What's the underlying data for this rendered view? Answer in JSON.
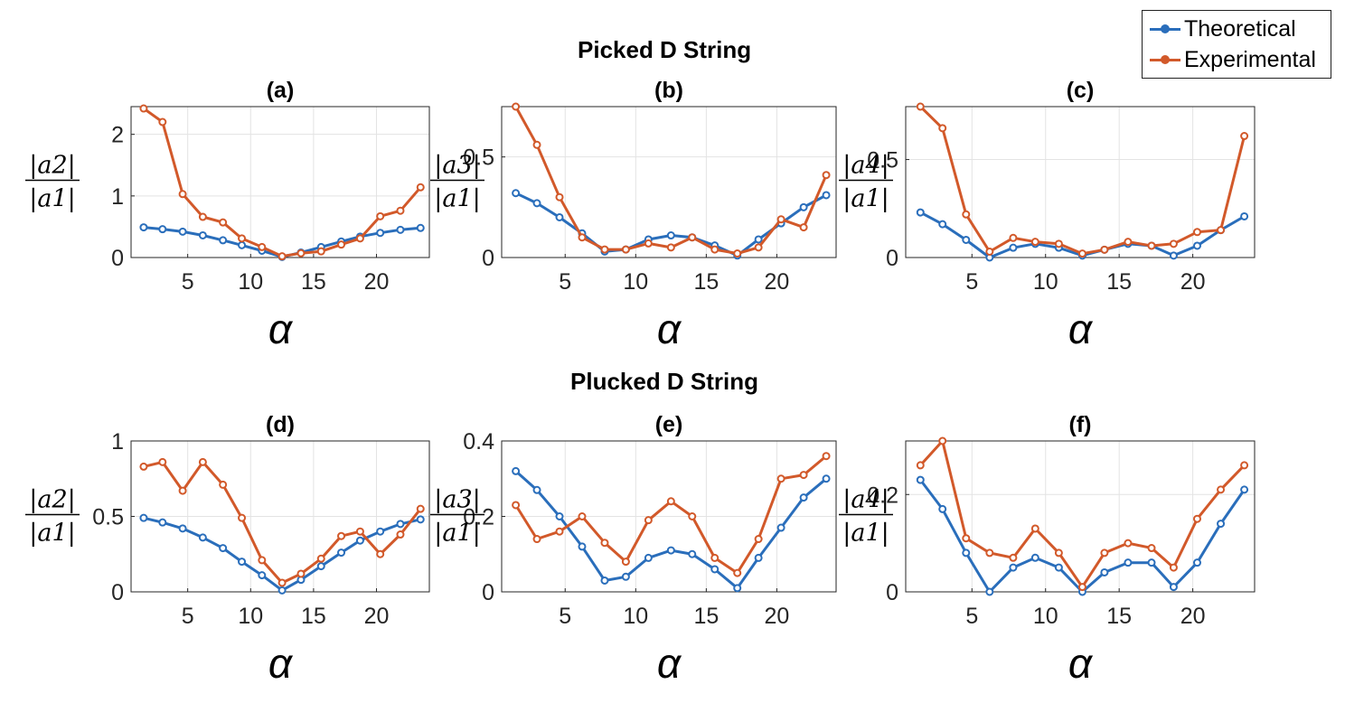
{
  "figure": {
    "row_titles": [
      "Picked D String",
      "Plucked D String"
    ],
    "legend": {
      "entries": [
        {
          "label": "Theoretical",
          "color": "#2a6ebb"
        },
        {
          "label": "Experimental",
          "color": "#d2592a"
        }
      ]
    }
  },
  "chart_data": [
    {
      "panel": "(a)",
      "type": "line",
      "xlabel": "α",
      "ylabel_num": "|a2|",
      "ylabel_den": "|a1|",
      "xlim": [
        0.5,
        24.2
      ],
      "xticks": [
        5,
        10,
        15,
        20
      ],
      "ylim": [
        0,
        2.45
      ],
      "yticks": [
        0,
        1,
        2
      ],
      "yticklabels": [
        "0",
        "1",
        "2"
      ],
      "grid": true,
      "x": [
        1.5,
        3.0,
        4.6,
        6.2,
        7.8,
        9.3,
        10.9,
        12.5,
        14.0,
        15.6,
        17.2,
        18.7,
        20.3,
        21.9,
        23.5
      ],
      "series": [
        {
          "name": "Theoretical",
          "color": "#2a6ebb",
          "values": [
            0.49,
            0.46,
            0.42,
            0.36,
            0.28,
            0.2,
            0.11,
            0.01,
            0.08,
            0.17,
            0.26,
            0.34,
            0.4,
            0.45,
            0.48
          ]
        },
        {
          "name": "Experimental",
          "color": "#d2592a",
          "values": [
            2.42,
            2.2,
            1.03,
            0.66,
            0.57,
            0.31,
            0.17,
            0.02,
            0.07,
            0.1,
            0.21,
            0.31,
            0.67,
            0.76,
            1.14
          ]
        }
      ]
    },
    {
      "panel": "(b)",
      "type": "line",
      "xlabel": "α",
      "ylabel_num": "|a3|",
      "ylabel_den": "|a1|",
      "xlim": [
        0.5,
        24.2
      ],
      "xticks": [
        5,
        10,
        15,
        20
      ],
      "ylim": [
        0,
        0.75
      ],
      "yticks": [
        0,
        0.5
      ],
      "yticklabels": [
        "0",
        "0.5"
      ],
      "grid": true,
      "x": [
        1.5,
        3.0,
        4.6,
        6.2,
        7.8,
        9.3,
        10.9,
        12.5,
        14.0,
        15.6,
        17.2,
        18.7,
        20.3,
        21.9,
        23.5
      ],
      "series": [
        {
          "name": "Theoretical",
          "color": "#2a6ebb",
          "values": [
            0.32,
            0.27,
            0.2,
            0.12,
            0.03,
            0.04,
            0.09,
            0.11,
            0.1,
            0.06,
            0.01,
            0.09,
            0.17,
            0.25,
            0.31
          ]
        },
        {
          "name": "Experimental",
          "color": "#d2592a",
          "values": [
            0.75,
            0.56,
            0.3,
            0.1,
            0.04,
            0.04,
            0.07,
            0.05,
            0.1,
            0.04,
            0.02,
            0.05,
            0.19,
            0.15,
            0.41
          ]
        }
      ]
    },
    {
      "panel": "(c)",
      "type": "line",
      "xlabel": "α",
      "ylabel_num": "|a4|",
      "ylabel_den": "|a1|",
      "xlim": [
        0.5,
        24.2
      ],
      "xticks": [
        5,
        10,
        15,
        20
      ],
      "ylim": [
        0,
        0.77
      ],
      "yticks": [
        0,
        0.5
      ],
      "yticklabels": [
        "0",
        "0.5"
      ],
      "grid": true,
      "x": [
        1.5,
        3.0,
        4.6,
        6.2,
        7.8,
        9.3,
        10.9,
        12.5,
        14.0,
        15.6,
        17.2,
        18.7,
        20.3,
        21.9,
        23.5
      ],
      "series": [
        {
          "name": "Theoretical",
          "color": "#2a6ebb",
          "values": [
            0.23,
            0.17,
            0.09,
            0.0,
            0.05,
            0.07,
            0.05,
            0.01,
            0.04,
            0.07,
            0.06,
            0.01,
            0.06,
            0.14,
            0.21
          ]
        },
        {
          "name": "Experimental",
          "color": "#d2592a",
          "values": [
            0.77,
            0.66,
            0.22,
            0.03,
            0.1,
            0.08,
            0.07,
            0.02,
            0.04,
            0.08,
            0.06,
            0.07,
            0.13,
            0.14,
            0.62
          ]
        }
      ]
    },
    {
      "panel": "(d)",
      "type": "line",
      "xlabel": "α",
      "ylabel_num": "|a2|",
      "ylabel_den": "|a1|",
      "xlim": [
        0.5,
        24.2
      ],
      "xticks": [
        5,
        10,
        15,
        20
      ],
      "ylim": [
        0,
        1.0
      ],
      "yticks": [
        0,
        0.5,
        1
      ],
      "yticklabels": [
        "0",
        "0.5",
        "1"
      ],
      "grid": true,
      "x": [
        1.5,
        3.0,
        4.6,
        6.2,
        7.8,
        9.3,
        10.9,
        12.5,
        14.0,
        15.6,
        17.2,
        18.7,
        20.3,
        21.9,
        23.5
      ],
      "series": [
        {
          "name": "Theoretical",
          "color": "#2a6ebb",
          "values": [
            0.49,
            0.46,
            0.42,
            0.36,
            0.29,
            0.2,
            0.11,
            0.01,
            0.08,
            0.17,
            0.26,
            0.34,
            0.4,
            0.45,
            0.48
          ]
        },
        {
          "name": "Experimental",
          "color": "#d2592a",
          "values": [
            0.83,
            0.86,
            0.67,
            0.86,
            0.71,
            0.49,
            0.21,
            0.06,
            0.12,
            0.22,
            0.37,
            0.4,
            0.25,
            0.38,
            0.55
          ]
        }
      ]
    },
    {
      "panel": "(e)",
      "type": "line",
      "xlabel": "α",
      "ylabel_num": "|a3|",
      "ylabel_den": "|a1|",
      "xlim": [
        0.5,
        24.2
      ],
      "xticks": [
        5,
        10,
        15,
        20
      ],
      "ylim": [
        0,
        0.4
      ],
      "yticks": [
        0,
        0.2,
        0.4
      ],
      "yticklabels": [
        "0",
        "0.2",
        "0.4"
      ],
      "grid": true,
      "x": [
        1.5,
        3.0,
        4.6,
        6.2,
        7.8,
        9.3,
        10.9,
        12.5,
        14.0,
        15.6,
        17.2,
        18.7,
        20.3,
        21.9,
        23.5
      ],
      "series": [
        {
          "name": "Theoretical",
          "color": "#2a6ebb",
          "values": [
            0.32,
            0.27,
            0.2,
            0.12,
            0.03,
            0.04,
            0.09,
            0.11,
            0.1,
            0.06,
            0.01,
            0.09,
            0.17,
            0.25,
            0.3
          ]
        },
        {
          "name": "Experimental",
          "color": "#d2592a",
          "values": [
            0.23,
            0.14,
            0.16,
            0.2,
            0.13,
            0.08,
            0.19,
            0.24,
            0.2,
            0.09,
            0.05,
            0.14,
            0.3,
            0.31,
            0.36
          ]
        }
      ]
    },
    {
      "panel": "(f)",
      "type": "line",
      "xlabel": "α",
      "ylabel_num": "|a4|",
      "ylabel_den": "|a1|",
      "xlim": [
        0.5,
        24.2
      ],
      "xticks": [
        5,
        10,
        15,
        20
      ],
      "ylim": [
        0,
        0.31
      ],
      "yticks": [
        0,
        0.2
      ],
      "yticklabels": [
        "0",
        "0.2"
      ],
      "grid": true,
      "x": [
        1.5,
        3.0,
        4.6,
        6.2,
        7.8,
        9.3,
        10.9,
        12.5,
        14.0,
        15.6,
        17.2,
        18.7,
        20.3,
        21.9,
        23.5
      ],
      "series": [
        {
          "name": "Theoretical",
          "color": "#2a6ebb",
          "values": [
            0.23,
            0.17,
            0.08,
            0.0,
            0.05,
            0.07,
            0.05,
            0.0,
            0.04,
            0.06,
            0.06,
            0.01,
            0.06,
            0.14,
            0.21
          ]
        },
        {
          "name": "Experimental",
          "color": "#d2592a",
          "values": [
            0.26,
            0.31,
            0.11,
            0.08,
            0.07,
            0.13,
            0.08,
            0.01,
            0.08,
            0.1,
            0.09,
            0.05,
            0.15,
            0.21,
            0.26
          ]
        }
      ]
    }
  ]
}
